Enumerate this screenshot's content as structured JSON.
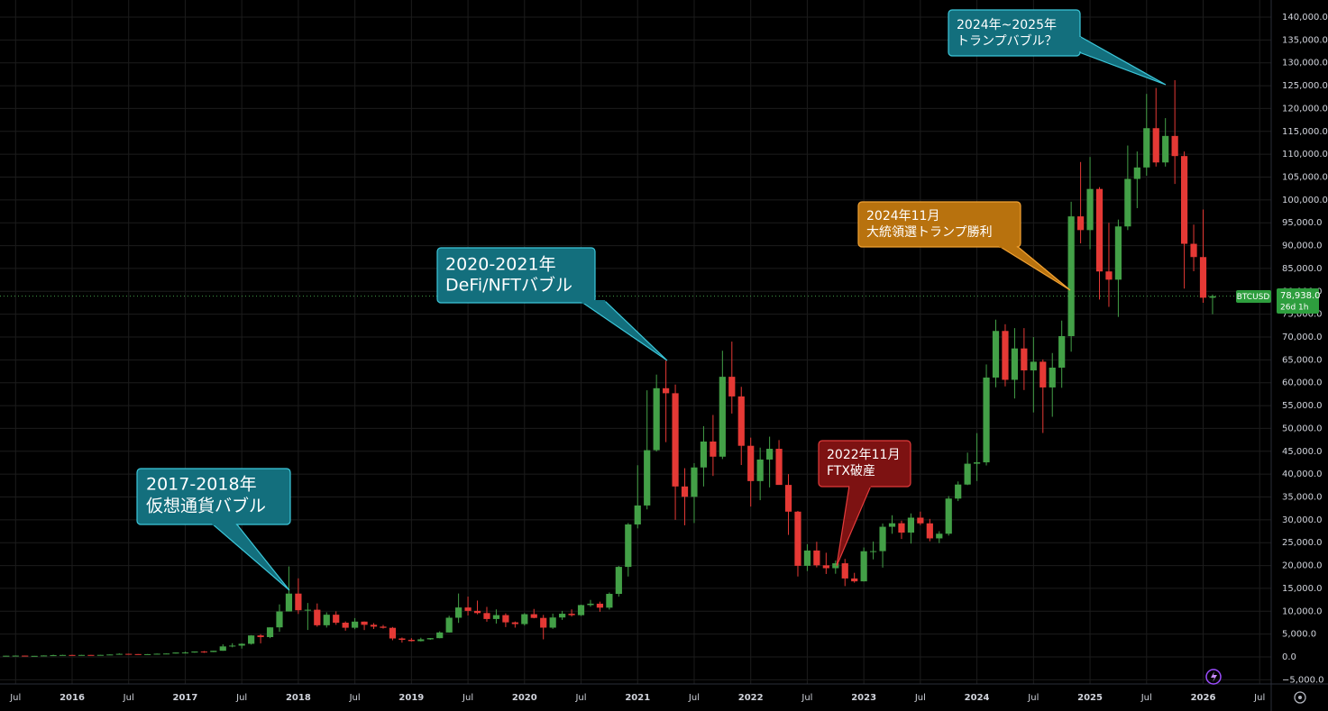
{
  "chart_data": {
    "type": "candlestick",
    "up_color": "#43a047",
    "down_color": "#e53935",
    "x": [
      "2015-06",
      "2015-07",
      "2015-08",
      "2015-09",
      "2015-10",
      "2015-11",
      "2015-12",
      "2016-01",
      "2016-02",
      "2016-03",
      "2016-04",
      "2016-05",
      "2016-06",
      "2016-07",
      "2016-08",
      "2016-09",
      "2016-10",
      "2016-11",
      "2016-12",
      "2017-01",
      "2017-02",
      "2017-03",
      "2017-04",
      "2017-05",
      "2017-06",
      "2017-07",
      "2017-08",
      "2017-09",
      "2017-10",
      "2017-11",
      "2017-12",
      "2018-01",
      "2018-02",
      "2018-03",
      "2018-04",
      "2018-05",
      "2018-06",
      "2018-07",
      "2018-08",
      "2018-09",
      "2018-10",
      "2018-11",
      "2018-12",
      "2019-01",
      "2019-02",
      "2019-03",
      "2019-04",
      "2019-05",
      "2019-06",
      "2019-07",
      "2019-08",
      "2019-09",
      "2019-10",
      "2019-11",
      "2019-12",
      "2020-01",
      "2020-02",
      "2020-03",
      "2020-04",
      "2020-05",
      "2020-06",
      "2020-07",
      "2020-08",
      "2020-09",
      "2020-10",
      "2020-11",
      "2020-12",
      "2021-01",
      "2021-02",
      "2021-03",
      "2021-04",
      "2021-05",
      "2021-06",
      "2021-07",
      "2021-08",
      "2021-09",
      "2021-10",
      "2021-11",
      "2021-12",
      "2022-01",
      "2022-02",
      "2022-03",
      "2022-04",
      "2022-05",
      "2022-06",
      "2022-07",
      "2022-08",
      "2022-09",
      "2022-10",
      "2022-11",
      "2022-12",
      "2023-01",
      "2023-02",
      "2023-03",
      "2023-04",
      "2023-05",
      "2023-06",
      "2023-07",
      "2023-08",
      "2023-09",
      "2023-10",
      "2023-11",
      "2023-12",
      "2024-01",
      "2024-02",
      "2024-03",
      "2024-04",
      "2024-05",
      "2024-06",
      "2024-07",
      "2024-08",
      "2024-09",
      "2024-10",
      "2024-11",
      "2024-12",
      "2025-01",
      "2025-02",
      "2025-03",
      "2025-04",
      "2025-05",
      "2025-06",
      "2025-07",
      "2025-08",
      "2025-09",
      "2025-10",
      "2025-11",
      "2025-12",
      "2026-01",
      "2026-02"
    ],
    "open": [
      222,
      263,
      284,
      230,
      236,
      314,
      378,
      430,
      369,
      437,
      416,
      448,
      532,
      673,
      624,
      575,
      609,
      700,
      743,
      964,
      970,
      1190,
      1080,
      1350,
      2300,
      2480,
      2875,
      4700,
      4340,
      6470,
      9950,
      13860,
      10220,
      10330,
      6930,
      9240,
      7490,
      6390,
      7730,
      7030,
      6630,
      6370,
      4040,
      3740,
      3460,
      3850,
      4110,
      5350,
      8580,
      10820,
      10080,
      9600,
      8300,
      9150,
      7570,
      7190,
      9350,
      8540,
      6410,
      8630,
      9450,
      9140,
      11350,
      11650,
      10780,
      13800,
      19700,
      28990,
      33140,
      45240,
      58800,
      57700,
      37300,
      35040,
      41460,
      47130,
      43820,
      61300,
      57000,
      46200,
      38480,
      43190,
      45540,
      37640,
      31790,
      19940,
      23290,
      20050,
      19420,
      20490,
      17170,
      16540,
      23130,
      23150,
      28480,
      29250,
      27210,
      30470,
      29230,
      25940,
      26960,
      34650,
      37720,
      42280,
      42580,
      61130,
      71330,
      60640,
      67500,
      62700,
      64600,
      58970,
      63300,
      70200,
      96400,
      93400,
      102400,
      84350,
      82550,
      94200,
      104600,
      107100,
      115700,
      108200,
      114000,
      109600,
      90400,
      87500,
      78600
    ],
    "high": [
      265,
      315,
      285,
      245,
      335,
      495,
      465,
      462,
      448,
      440,
      466,
      548,
      780,
      704,
      626,
      631,
      740,
      755,
      980,
      1150,
      1200,
      1300,
      1350,
      2760,
      3000,
      2990,
      4770,
      4980,
      6470,
      11500,
      19800,
      17200,
      11800,
      11700,
      9760,
      9980,
      7770,
      8500,
      7760,
      7400,
      7000,
      6550,
      4250,
      4110,
      4200,
      4130,
      5600,
      9000,
      13880,
      13200,
      12330,
      10950,
      10400,
      9530,
      7750,
      9580,
      10500,
      9200,
      9470,
      10070,
      10400,
      11450,
      12480,
      12100,
      14100,
      19900,
      29300,
      41950,
      58350,
      61780,
      64850,
      59600,
      41300,
      42400,
      50500,
      52950,
      67000,
      69000,
      59100,
      47990,
      45800,
      48200,
      47450,
      40000,
      31950,
      24670,
      25200,
      22800,
      21100,
      21450,
      18400,
      23950,
      25250,
      29200,
      31000,
      29820,
      31400,
      31800,
      30200,
      27500,
      35200,
      38400,
      44700,
      48970,
      64000,
      73800,
      72800,
      71950,
      71950,
      70000,
      65100,
      66500,
      73600,
      99600,
      108300,
      109400,
      102800,
      95000,
      95700,
      111900,
      110600,
      123200,
      124500,
      117900,
      126200,
      110600,
      94600,
      97900,
      79300
    ],
    "low": [
      215,
      254,
      199,
      225,
      236,
      300,
      350,
      352,
      366,
      394,
      414,
      435,
      531,
      607,
      480,
      571,
      605,
      680,
      740,
      750,
      920,
      890,
      1060,
      1340,
      2100,
      1830,
      2700,
      2970,
      4110,
      5500,
      9950,
      9400,
      5900,
      6600,
      6430,
      7030,
      5750,
      6070,
      5880,
      6120,
      6200,
      3650,
      3130,
      3380,
      3390,
      3730,
      4080,
      5320,
      7450,
      9070,
      9330,
      7710,
      7300,
      6530,
      6410,
      6870,
      8450,
      3850,
      6150,
      8100,
      8830,
      8970,
      10980,
      9880,
      10370,
      13200,
      17600,
      28130,
      32300,
      44950,
      47000,
      30000,
      28800,
      29300,
      37300,
      39600,
      43300,
      53250,
      42000,
      32900,
      34300,
      37100,
      37700,
      26700,
      17600,
      18800,
      19600,
      18150,
      18200,
      15500,
      16250,
      16500,
      21350,
      19550,
      26950,
      25810,
      24800,
      28850,
      25300,
      24900,
      26550,
      34100,
      37600,
      38500,
      41900,
      59000,
      59200,
      56550,
      58400,
      53500,
      49000,
      52550,
      58900,
      66800,
      90500,
      89200,
      78200,
      76600,
      74400,
      93400,
      98200,
      105300,
      107300,
      107300,
      103500,
      80600,
      84400,
      77500,
      75000
    ],
    "close": [
      263,
      284,
      230,
      236,
      314,
      378,
      430,
      369,
      437,
      416,
      448,
      532,
      673,
      624,
      575,
      609,
      700,
      743,
      964,
      970,
      1190,
      1080,
      1350,
      2300,
      2480,
      2875,
      4700,
      4340,
      6470,
      9950,
      13860,
      10220,
      10330,
      6930,
      9240,
      7490,
      6390,
      7730,
      7030,
      6630,
      6370,
      4040,
      3740,
      3460,
      3850,
      4110,
      5350,
      8580,
      10820,
      10080,
      9600,
      8300,
      9150,
      7570,
      7190,
      9350,
      8540,
      6410,
      8630,
      9450,
      9140,
      11350,
      11650,
      10780,
      13800,
      19700,
      28990,
      33140,
      45240,
      58800,
      57700,
      37300,
      35040,
      41460,
      47130,
      43820,
      61300,
      57000,
      46200,
      38480,
      43190,
      45540,
      37640,
      31790,
      19940,
      23290,
      20050,
      19420,
      20490,
      17170,
      16540,
      23130,
      23150,
      28480,
      29250,
      27210,
      30470,
      29230,
      25940,
      26960,
      34650,
      37720,
      42280,
      42580,
      61130,
      71330,
      60640,
      67500,
      62700,
      64600,
      58970,
      63300,
      70200,
      96400,
      93400,
      102400,
      84350,
      82550,
      94200,
      104600,
      107100,
      115700,
      108200,
      114000,
      109600,
      90400,
      87500,
      78600,
      78938
    ],
    "ylim": [
      -6000,
      142000
    ],
    "yticks": [
      {
        "value": -5000,
        "label": "−5,000.0"
      },
      {
        "value": 0,
        "label": "0.0"
      },
      {
        "value": 5000,
        "label": "5,000.0"
      },
      {
        "value": 10000,
        "label": "10,000.0"
      },
      {
        "value": 15000,
        "label": "15,000.0"
      },
      {
        "value": 20000,
        "label": "20,000.0"
      },
      {
        "value": 25000,
        "label": "25,000.0"
      },
      {
        "value": 30000,
        "label": "30,000.0"
      },
      {
        "value": 35000,
        "label": "35,000.0"
      },
      {
        "value": 40000,
        "label": "40,000.0"
      },
      {
        "value": 45000,
        "label": "45,000.0"
      },
      {
        "value": 50000,
        "label": "50,000.0"
      },
      {
        "value": 55000,
        "label": "55,000.0"
      },
      {
        "value": 60000,
        "label": "60,000.0"
      },
      {
        "value": 65000,
        "label": "65,000.0"
      },
      {
        "value": 70000,
        "label": "70,000.0"
      },
      {
        "value": 75000,
        "label": "75,000.0"
      },
      {
        "value": 80000,
        "label": "80,000.0"
      },
      {
        "value": 85000,
        "label": "85,000.0"
      },
      {
        "value": 90000,
        "label": "90,000.0"
      },
      {
        "value": 95000,
        "label": "95,000.0"
      },
      {
        "value": 100000,
        "label": "100,000.0"
      },
      {
        "value": 105000,
        "label": "105,000.0"
      },
      {
        "value": 110000,
        "label": "110,000.0"
      },
      {
        "value": 115000,
        "label": "115,000.0"
      },
      {
        "value": 120000,
        "label": "120,000.0"
      },
      {
        "value": 125000,
        "label": "125,000.0"
      },
      {
        "value": 130000,
        "label": "130,000.0"
      },
      {
        "value": 135000,
        "label": "135,000.0"
      },
      {
        "value": 140000,
        "label": "140,000.0"
      }
    ],
    "xticks": [
      {
        "value": "2015-07",
        "label": "Jul"
      },
      {
        "value": "2016-01",
        "label": "2016"
      },
      {
        "value": "2016-07",
        "label": "Jul"
      },
      {
        "value": "2017-01",
        "label": "2017"
      },
      {
        "value": "2017-07",
        "label": "Jul"
      },
      {
        "value": "2018-01",
        "label": "2018"
      },
      {
        "value": "2018-07",
        "label": "Jul"
      },
      {
        "value": "2019-01",
        "label": "2019"
      },
      {
        "value": "2019-07",
        "label": "Jul"
      },
      {
        "value": "2020-01",
        "label": "2020"
      },
      {
        "value": "2020-07",
        "label": "Jul"
      },
      {
        "value": "2021-01",
        "label": "2021"
      },
      {
        "value": "2021-07",
        "label": "Jul"
      },
      {
        "value": "2022-01",
        "label": "2022"
      },
      {
        "value": "2022-07",
        "label": "Jul"
      },
      {
        "value": "2023-01",
        "label": "2023"
      },
      {
        "value": "2023-07",
        "label": "Jul"
      },
      {
        "value": "2024-01",
        "label": "2024"
      },
      {
        "value": "2024-07",
        "label": "Jul"
      },
      {
        "value": "2025-01",
        "label": "2025"
      },
      {
        "value": "2025-07",
        "label": "Jul"
      },
      {
        "value": "2026-01",
        "label": "2026"
      },
      {
        "value": "2026-07",
        "label": "Jul"
      }
    ],
    "grid": true,
    "last_price": {
      "symbol": "BTCUSD",
      "value": 78938,
      "label": "78,938.0",
      "countdown": "26d 1h"
    },
    "annotations": [
      {
        "lines": [
          "2017-2018年",
          "仮想通貨バブル"
        ]
      },
      {
        "lines": [
          "2020-2021年",
          "DeFi/NFTバブル"
        ]
      },
      {
        "lines": [
          "2022年11月",
          "FTX破産"
        ]
      },
      {
        "lines": [
          "2024年11月",
          "大統領選トランプ勝利"
        ]
      },
      {
        "lines": [
          "2024年~2025年",
          "トランプバブル？"
        ]
      }
    ]
  }
}
